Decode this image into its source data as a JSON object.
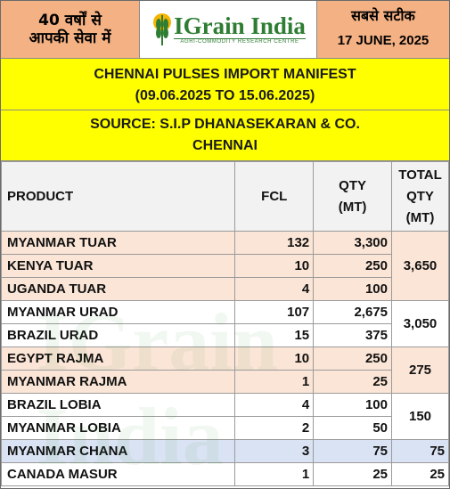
{
  "header": {
    "left_line1": "40 वर्षों से",
    "left_line2": "आपकी सेवा में",
    "logo_title": "IGrain India",
    "logo_subtitle": "AGRI-COMMODITY RESEARCH CENTRE",
    "right_line1": "सबसे सटीक",
    "date": "17 JUNE, 2025"
  },
  "title": {
    "line1": "CHENNAI PULSES IMPORT MANIFEST",
    "line2": "(09.06.2025 TO 15.06.2025)"
  },
  "source": {
    "line1": "SOURCE: S.I.P DHANASEKARAN & CO.",
    "line2": "CHENNAI"
  },
  "columns": {
    "product": "PRODUCT",
    "fcl": "FCL",
    "qty_1": "QTY",
    "qty_2": "(MT)",
    "total_1": "TOTAL",
    "total_2": "QTY",
    "total_3": "(MT)"
  },
  "rows": [
    {
      "product": "MYANMAR TUAR",
      "fcl": "132",
      "qty": "3,300"
    },
    {
      "product": "KENYA TUAR",
      "fcl": "10",
      "qty": "250"
    },
    {
      "product": "UGANDA TUAR",
      "fcl": "4",
      "qty": "100"
    },
    {
      "product": "MYANMAR URAD",
      "fcl": "107",
      "qty": "2,675"
    },
    {
      "product": "BRAZIL URAD",
      "fcl": "15",
      "qty": "375"
    },
    {
      "product": "EGYPT RAJMA",
      "fcl": "10",
      "qty": "250"
    },
    {
      "product": "MYANMAR RAJMA",
      "fcl": "1",
      "qty": "25"
    },
    {
      "product": "BRAZIL LOBIA",
      "fcl": "4",
      "qty": "100"
    },
    {
      "product": "MYANMAR LOBIA",
      "fcl": "2",
      "qty": "50"
    },
    {
      "product": "MYANMAR CHANA",
      "fcl": "3",
      "qty": "75"
    },
    {
      "product": "CANADA MASUR",
      "fcl": "1",
      "qty": "25"
    }
  ],
  "totals": {
    "tuar": "3,650",
    "urad": "3,050",
    "rajma": "275",
    "lobia": "150",
    "chana": "75",
    "masur": "25"
  },
  "watermark": "IGrain India"
}
